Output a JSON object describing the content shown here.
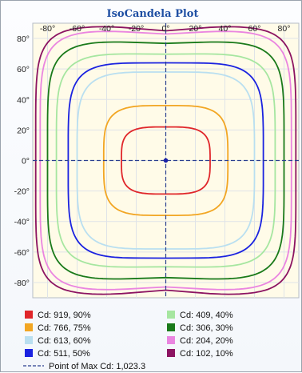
{
  "chart_data": {
    "type": "contour",
    "title": "IsoCandela Plot",
    "x_ticks": [
      -80,
      -60,
      -40,
      -20,
      0,
      20,
      40,
      60,
      80
    ],
    "y_ticks": [
      80,
      60,
      40,
      20,
      0,
      -20,
      -40,
      -60,
      -80
    ],
    "tick_suffix": "°",
    "xlim": [
      -90,
      90
    ],
    "ylim": [
      -90,
      90
    ],
    "grid": true,
    "max_point": [
      0,
      0
    ],
    "contours": [
      {
        "label": "Cd: 919, 90%",
        "color": "#e0262a",
        "x_extent": 30,
        "y_extent": 22,
        "shape": 0.75
      },
      {
        "label": "Cd: 766, 75%",
        "color": "#f2a623",
        "x_extent": 42,
        "y_extent": 36,
        "shape": 0.9
      },
      {
        "label": "Cd: 613, 60%",
        "color": "#b9dff0",
        "x_extent": 60,
        "y_extent": 58,
        "shape": 1.15
      },
      {
        "label": "Cd: 511, 50%",
        "color": "#1a22e0",
        "x_extent": 66,
        "y_extent": 64,
        "shape": 1.3
      },
      {
        "label": "Cd: 409, 40%",
        "color": "#a6e6a0",
        "x_extent": 74,
        "y_extent": 70,
        "shape": 1.45
      },
      {
        "label": "Cd: 306, 30%",
        "color": "#1a7a1a",
        "x_extent": 80,
        "y_extent": 78,
        "shape": 1.6
      },
      {
        "label": "Cd: 204, 20%",
        "color": "#ea85e0",
        "x_extent": 85,
        "y_extent": 85,
        "shape": 1.75
      },
      {
        "label": "Cd: 102, 10%",
        "color": "#8c1462",
        "x_extent": 88,
        "y_extent": 88,
        "shape": 1.9
      }
    ],
    "max_label": "Point of Max Cd: 1,023.3",
    "legend_placement": "bottom"
  }
}
